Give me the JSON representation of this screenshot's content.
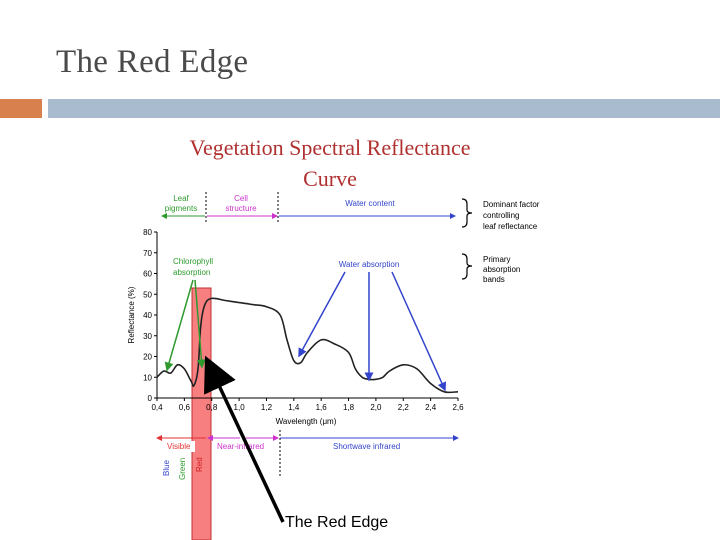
{
  "slide": {
    "title": "The Red Edge",
    "caption": "The Red Edge"
  },
  "colors": {
    "accent_orange": "#d9814e",
    "accent_blue": "#a9bccf",
    "figure_title": "#b03030",
    "green": "#2e9a2e",
    "magenta": "#cc33cc",
    "blue": "#3344cc",
    "red": "#e33333",
    "red_band": "#f77f80"
  },
  "figure": {
    "title_line1": "Vegetation Spectral Reflectance",
    "title_line2": "Curve",
    "factor_labels": {
      "leaf": "Leaf",
      "pigments": "pigments",
      "cell": "Cell",
      "structure": "structure",
      "water": "Water content"
    },
    "brace_note1": [
      "Dominant factor",
      "controlling",
      "leaf reflectance"
    ],
    "brace_note2": [
      "Primary",
      "absorption",
      "bands"
    ],
    "annotations": {
      "chlorophyll": [
        "Chlorophyll",
        "absorption"
      ],
      "water": "Water absorption"
    },
    "regions": {
      "visible": "Visible",
      "nir": "Near-infrared",
      "swir": "Shortwave infrared"
    },
    "colors_vertical": [
      "Blue",
      "Green",
      "Red"
    ]
  },
  "chart_data": {
    "type": "line",
    "xlabel": "Wavelength (μm)",
    "ylabel": "Reflectance (%)",
    "xlim": [
      0.4,
      2.6
    ],
    "ylim": [
      0,
      80
    ],
    "x_ticks": [
      "0,4",
      "0,6",
      "0,8",
      "1,0",
      "1,2",
      "1,4",
      "1,6",
      "1,8",
      "2,0",
      "2,2",
      "2,4",
      "2,6"
    ],
    "y_ticks": [
      "0",
      "10",
      "20",
      "30",
      "40",
      "50",
      "60",
      "70",
      "80"
    ],
    "series": [
      {
        "x": [
          0.4,
          0.45,
          0.5,
          0.55,
          0.6,
          0.65,
          0.67,
          0.7,
          0.72,
          0.75,
          0.8,
          0.9,
          1.0,
          1.1,
          1.2,
          1.3,
          1.35,
          1.4,
          1.45,
          1.5,
          1.6,
          1.7,
          1.8,
          1.85,
          1.9,
          1.95,
          2.0,
          2.05,
          2.1,
          2.2,
          2.3,
          2.4,
          2.5,
          2.6
        ],
        "y": [
          10,
          13,
          12,
          16,
          14,
          8,
          6,
          14,
          35,
          45,
          48,
          47,
          46,
          45,
          44,
          40,
          28,
          18,
          17,
          22,
          28,
          26,
          22,
          14,
          10,
          9,
          9,
          10,
          13,
          16,
          14,
          7,
          3,
          3
        ]
      }
    ]
  }
}
